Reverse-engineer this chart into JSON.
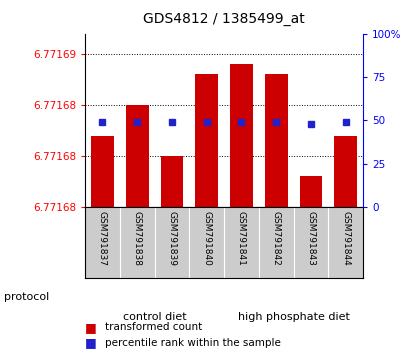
{
  "title": "GDS4812 / 1385499_at",
  "samples": [
    "GSM791837",
    "GSM791838",
    "GSM791839",
    "GSM791840",
    "GSM791841",
    "GSM791842",
    "GSM791843",
    "GSM791844"
  ],
  "bar_tops": [
    6.771682,
    6.771685,
    6.77168,
    6.771688,
    6.771689,
    6.771688,
    6.771678,
    6.771682
  ],
  "percentile_ranks": [
    49,
    49,
    49,
    49,
    49,
    49,
    48,
    49
  ],
  "y_min": 6.771675,
  "y_max": 6.771692,
  "left_ytick_vals": [
    6.771675,
    6.77168,
    6.771685,
    6.77169
  ],
  "left_ytick_labels": [
    "6.77168",
    "6.77168",
    "6.77168",
    "6.77169"
  ],
  "right_ytick_vals": [
    0,
    25,
    50,
    75,
    100
  ],
  "right_ytick_labels": [
    "0",
    "25",
    "50",
    "75",
    "100%"
  ],
  "bar_color": "#cc0000",
  "percentile_color": "#2222cc",
  "control_color": "#bbeebb",
  "highp_color": "#55cc55",
  "label_bg_color": "#cccccc",
  "group_divider": 4,
  "group_labels": [
    "control diet",
    "high phosphate diet"
  ],
  "protocol_label": "protocol"
}
